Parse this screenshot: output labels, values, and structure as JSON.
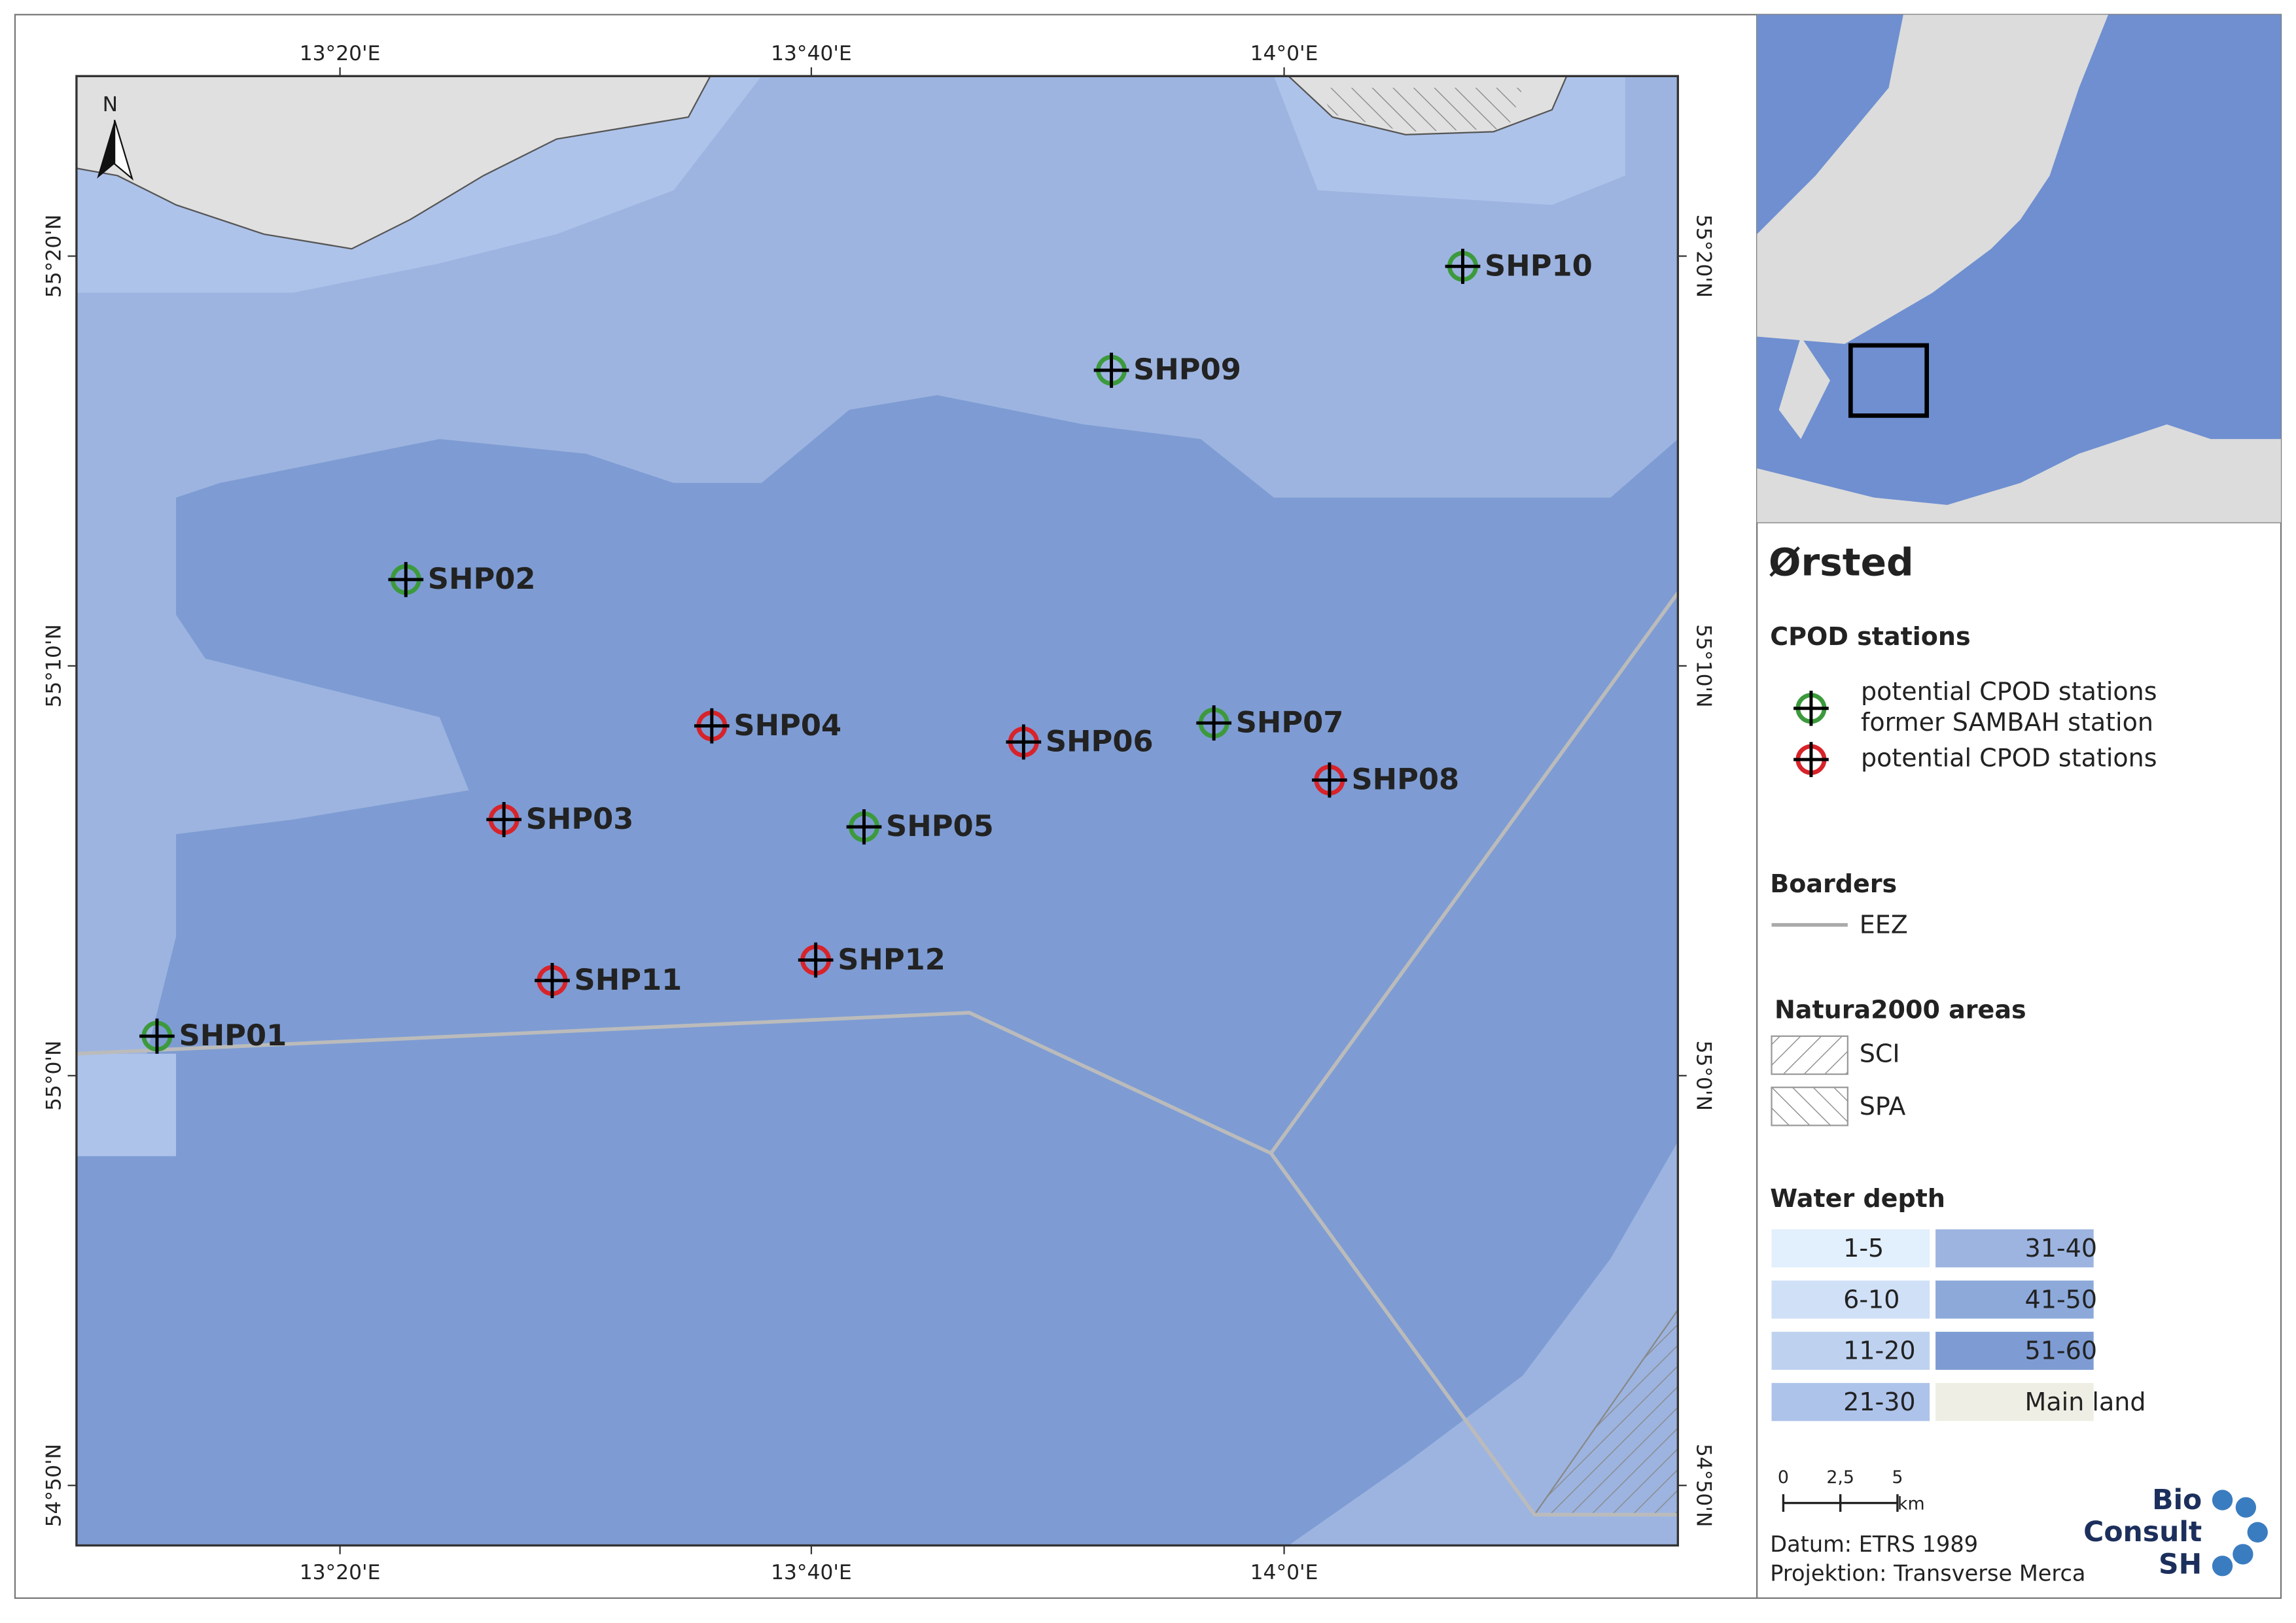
{
  "map": {
    "lon_labels": [
      "13°20'E",
      "13°40'E",
      "14°0'E"
    ],
    "lat_labels": [
      "55°20'N",
      "55°10'N",
      "55°0'N",
      "54°50'N"
    ],
    "north_label": "N",
    "stations": [
      {
        "label": "SHP01",
        "color": "#3c9a3c"
      },
      {
        "label": "SHP02",
        "color": "#3c9a3c"
      },
      {
        "label": "SHP03",
        "color": "#d8232a"
      },
      {
        "label": "SHP04",
        "color": "#d8232a"
      },
      {
        "label": "SHP05",
        "color": "#3c9a3c"
      },
      {
        "label": "SHP06",
        "color": "#d8232a"
      },
      {
        "label": "SHP07",
        "color": "#3c9a3c"
      },
      {
        "label": "SHP08",
        "color": "#d8232a"
      },
      {
        "label": "SHP09",
        "color": "#3c9a3c"
      },
      {
        "label": "SHP10",
        "color": "#3c9a3c"
      },
      {
        "label": "SHP11",
        "color": "#d8232a"
      },
      {
        "label": "SHP12",
        "color": "#d8232a"
      }
    ]
  },
  "legend": {
    "title": "Ørsted",
    "cpod_heading": "CPOD stations",
    "cpod_items": [
      {
        "lines": [
          "potential CPOD stations",
          "former SAMBAH station"
        ],
        "color": "#3c9a3c"
      },
      {
        "lines": [
          "potential CPOD stations"
        ],
        "color": "#d8232a"
      }
    ],
    "borders_heading": "Boarders",
    "eez": "EEZ",
    "natura_heading": "Natura2000 areas",
    "sci": "SCI",
    "spa": "SPA",
    "depth_heading": "Water depth",
    "depth_classes": [
      {
        "label": "1-5",
        "color": "#e2effc"
      },
      {
        "label": "6-10",
        "color": "#cfe0f7"
      },
      {
        "label": "11-20",
        "color": "#bed2f0"
      },
      {
        "label": "21-30",
        "color": "#aec3ea"
      },
      {
        "label": "31-40",
        "color": "#9db4e0"
      },
      {
        "label": "41-50",
        "color": "#8ca9da"
      },
      {
        "label": "51-60",
        "color": "#7e9cd3"
      },
      {
        "label": "Main land",
        "color": "#eeeee4"
      }
    ],
    "scale_labels": [
      "0",
      "2,5",
      "5"
    ],
    "scale_unit": "km",
    "datum": "Datum: ETRS 1989",
    "projection": "Projektion: Transverse Merca",
    "logo": [
      "Bio",
      "Consult",
      "SH"
    ]
  }
}
